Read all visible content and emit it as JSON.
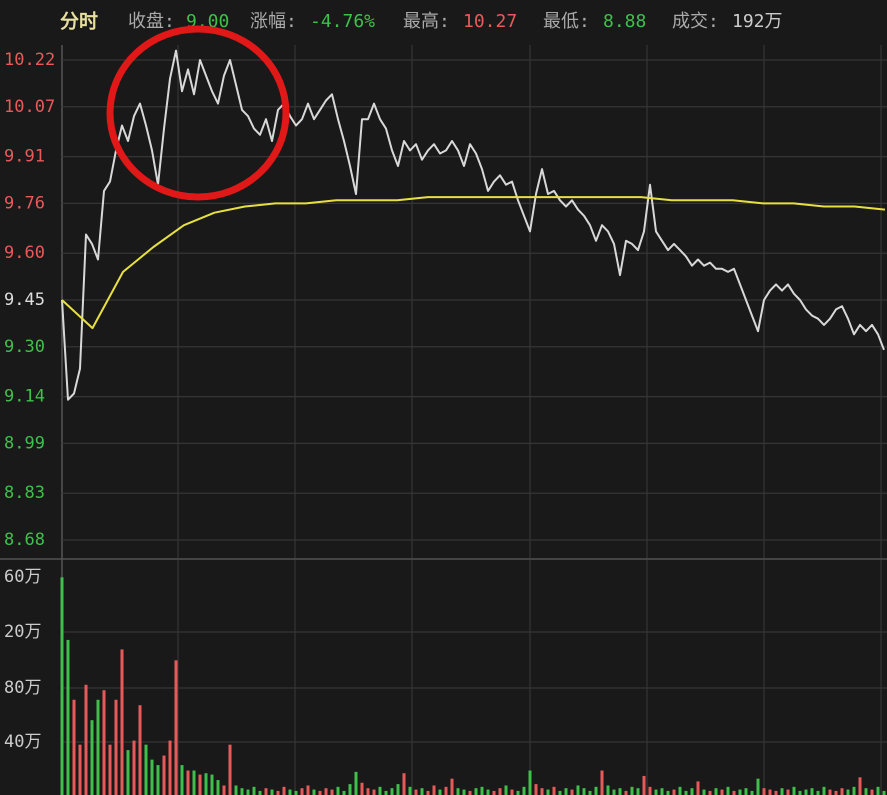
{
  "chart_data": {
    "type": "line",
    "title": "分时",
    "stats": [
      {
        "label": "收盘:",
        "value": "9.00",
        "color": "#3ec04a"
      },
      {
        "label": "涨幅:",
        "value": "-4.76%",
        "color": "#3ec04a"
      },
      {
        "label": "最高:",
        "value": "10.27",
        "color": "#e85a5a"
      },
      {
        "label": "最低:",
        "value": "8.88",
        "color": "#3ec04a"
      },
      {
        "label": "成交:",
        "value": "192万",
        "color": "#cccccc"
      }
    ],
    "ylim": [
      8.68,
      10.22
    ],
    "yticks": [
      {
        "value": 10.22,
        "label": "10.22"
      },
      {
        "value": 10.07,
        "label": "10.07"
      },
      {
        "value": 9.91,
        "label": "9.91"
      },
      {
        "value": 9.76,
        "label": "9.76"
      },
      {
        "value": 9.6,
        "label": "9.60"
      },
      {
        "value": 9.45,
        "label": "9.45"
      },
      {
        "value": 9.3,
        "label": "9.30"
      },
      {
        "value": 9.14,
        "label": "9.14"
      },
      {
        "value": 8.99,
        "label": "8.99"
      },
      {
        "value": 8.83,
        "label": "8.83"
      },
      {
        "value": 8.68,
        "label": "8.68"
      }
    ],
    "ytick_colors": [
      "#e85a5a",
      "#e85a5a",
      "#e85a5a",
      "#e85a5a",
      "#e85a5a",
      "#dddddd",
      "#3ec04a",
      "#3ec04a",
      "#3ec04a",
      "#3ec04a",
      "#3ec04a"
    ],
    "series": [
      {
        "name": "price",
        "color": "#d8d8d8",
        "values": [
          9.45,
          9.13,
          9.15,
          9.23,
          9.66,
          9.63,
          9.58,
          9.8,
          9.83,
          9.93,
          10.01,
          9.96,
          10.04,
          10.08,
          10.01,
          9.93,
          9.82,
          10.0,
          10.16,
          10.25,
          10.12,
          10.19,
          10.11,
          10.22,
          10.17,
          10.12,
          10.08,
          10.17,
          10.22,
          10.14,
          10.06,
          10.04,
          10.0,
          9.98,
          10.03,
          9.96,
          10.06,
          10.08,
          10.04,
          10.01,
          10.03,
          10.08,
          10.03,
          10.06,
          10.09,
          10.11,
          10.03,
          9.96,
          9.88,
          9.79,
          10.03,
          10.03,
          10.08,
          10.03,
          10.0,
          9.93,
          9.88,
          9.96,
          9.93,
          9.95,
          9.9,
          9.93,
          9.95,
          9.92,
          9.93,
          9.96,
          9.93,
          9.88,
          9.95,
          9.92,
          9.87,
          9.8,
          9.83,
          9.85,
          9.82,
          9.83,
          9.77,
          9.72,
          9.67,
          9.79,
          9.87,
          9.79,
          9.8,
          9.77,
          9.75,
          9.77,
          9.74,
          9.72,
          9.69,
          9.64,
          9.69,
          9.67,
          9.63,
          9.53,
          9.64,
          9.63,
          9.61,
          9.67,
          9.82,
          9.67,
          9.64,
          9.61,
          9.63,
          9.61,
          9.59,
          9.56,
          9.58,
          9.56,
          9.57,
          9.55,
          9.55,
          9.54,
          9.55,
          9.5,
          9.45,
          9.4,
          9.35,
          9.45,
          9.48,
          9.5,
          9.48,
          9.5,
          9.47,
          9.45,
          9.42,
          9.4,
          9.39,
          9.37,
          9.39,
          9.42,
          9.43,
          9.39,
          9.34,
          9.37,
          9.35,
          9.37,
          9.34,
          9.29
        ]
      },
      {
        "name": "average",
        "color": "#e8e040",
        "values": [
          9.45,
          9.36,
          9.54,
          9.62,
          9.69,
          9.73,
          9.75,
          9.76,
          9.76,
          9.77,
          9.77,
          9.77,
          9.78,
          9.78,
          9.78,
          9.78,
          9.78,
          9.78,
          9.78,
          9.78,
          9.77,
          9.77,
          9.77,
          9.76,
          9.76,
          9.75,
          9.75,
          9.74
        ]
      }
    ],
    "volume": {
      "vlim": [
        0,
        172
      ],
      "labels": [
        "60万",
        "20万",
        "80万",
        "40万"
      ],
      "up_color": "#e85a5a",
      "down_color": "#3ec04a",
      "values": [
        160,
        114,
        70,
        37,
        81,
        55,
        70,
        77,
        37,
        70,
        107,
        33,
        40,
        66,
        37,
        26,
        22,
        29,
        40,
        99,
        22,
        18,
        18,
        15,
        16,
        15,
        11,
        7,
        37,
        7,
        5,
        4,
        6,
        3,
        5,
        4,
        3,
        6,
        4,
        3,
        5,
        7,
        4,
        3,
        5,
        4,
        6,
        3,
        8,
        17,
        9,
        5,
        4,
        6,
        3,
        5,
        8,
        16,
        6,
        4,
        5,
        3,
        7,
        4,
        6,
        12,
        5,
        4,
        3,
        5,
        6,
        4,
        3,
        5,
        7,
        4,
        3,
        6,
        18,
        8,
        5,
        4,
        6,
        3,
        5,
        4,
        7,
        5,
        3,
        6,
        18,
        7,
        4,
        5,
        3,
        6,
        5,
        14,
        6,
        4,
        5,
        3,
        4,
        6,
        3,
        5,
        10,
        4,
        3,
        5,
        4,
        6,
        3,
        4,
        5,
        3,
        12,
        5,
        4,
        3,
        5,
        4,
        6,
        3,
        4,
        5,
        3,
        6,
        4,
        3,
        5,
        4,
        6,
        13,
        5,
        4,
        6,
        3
      ]
    }
  }
}
